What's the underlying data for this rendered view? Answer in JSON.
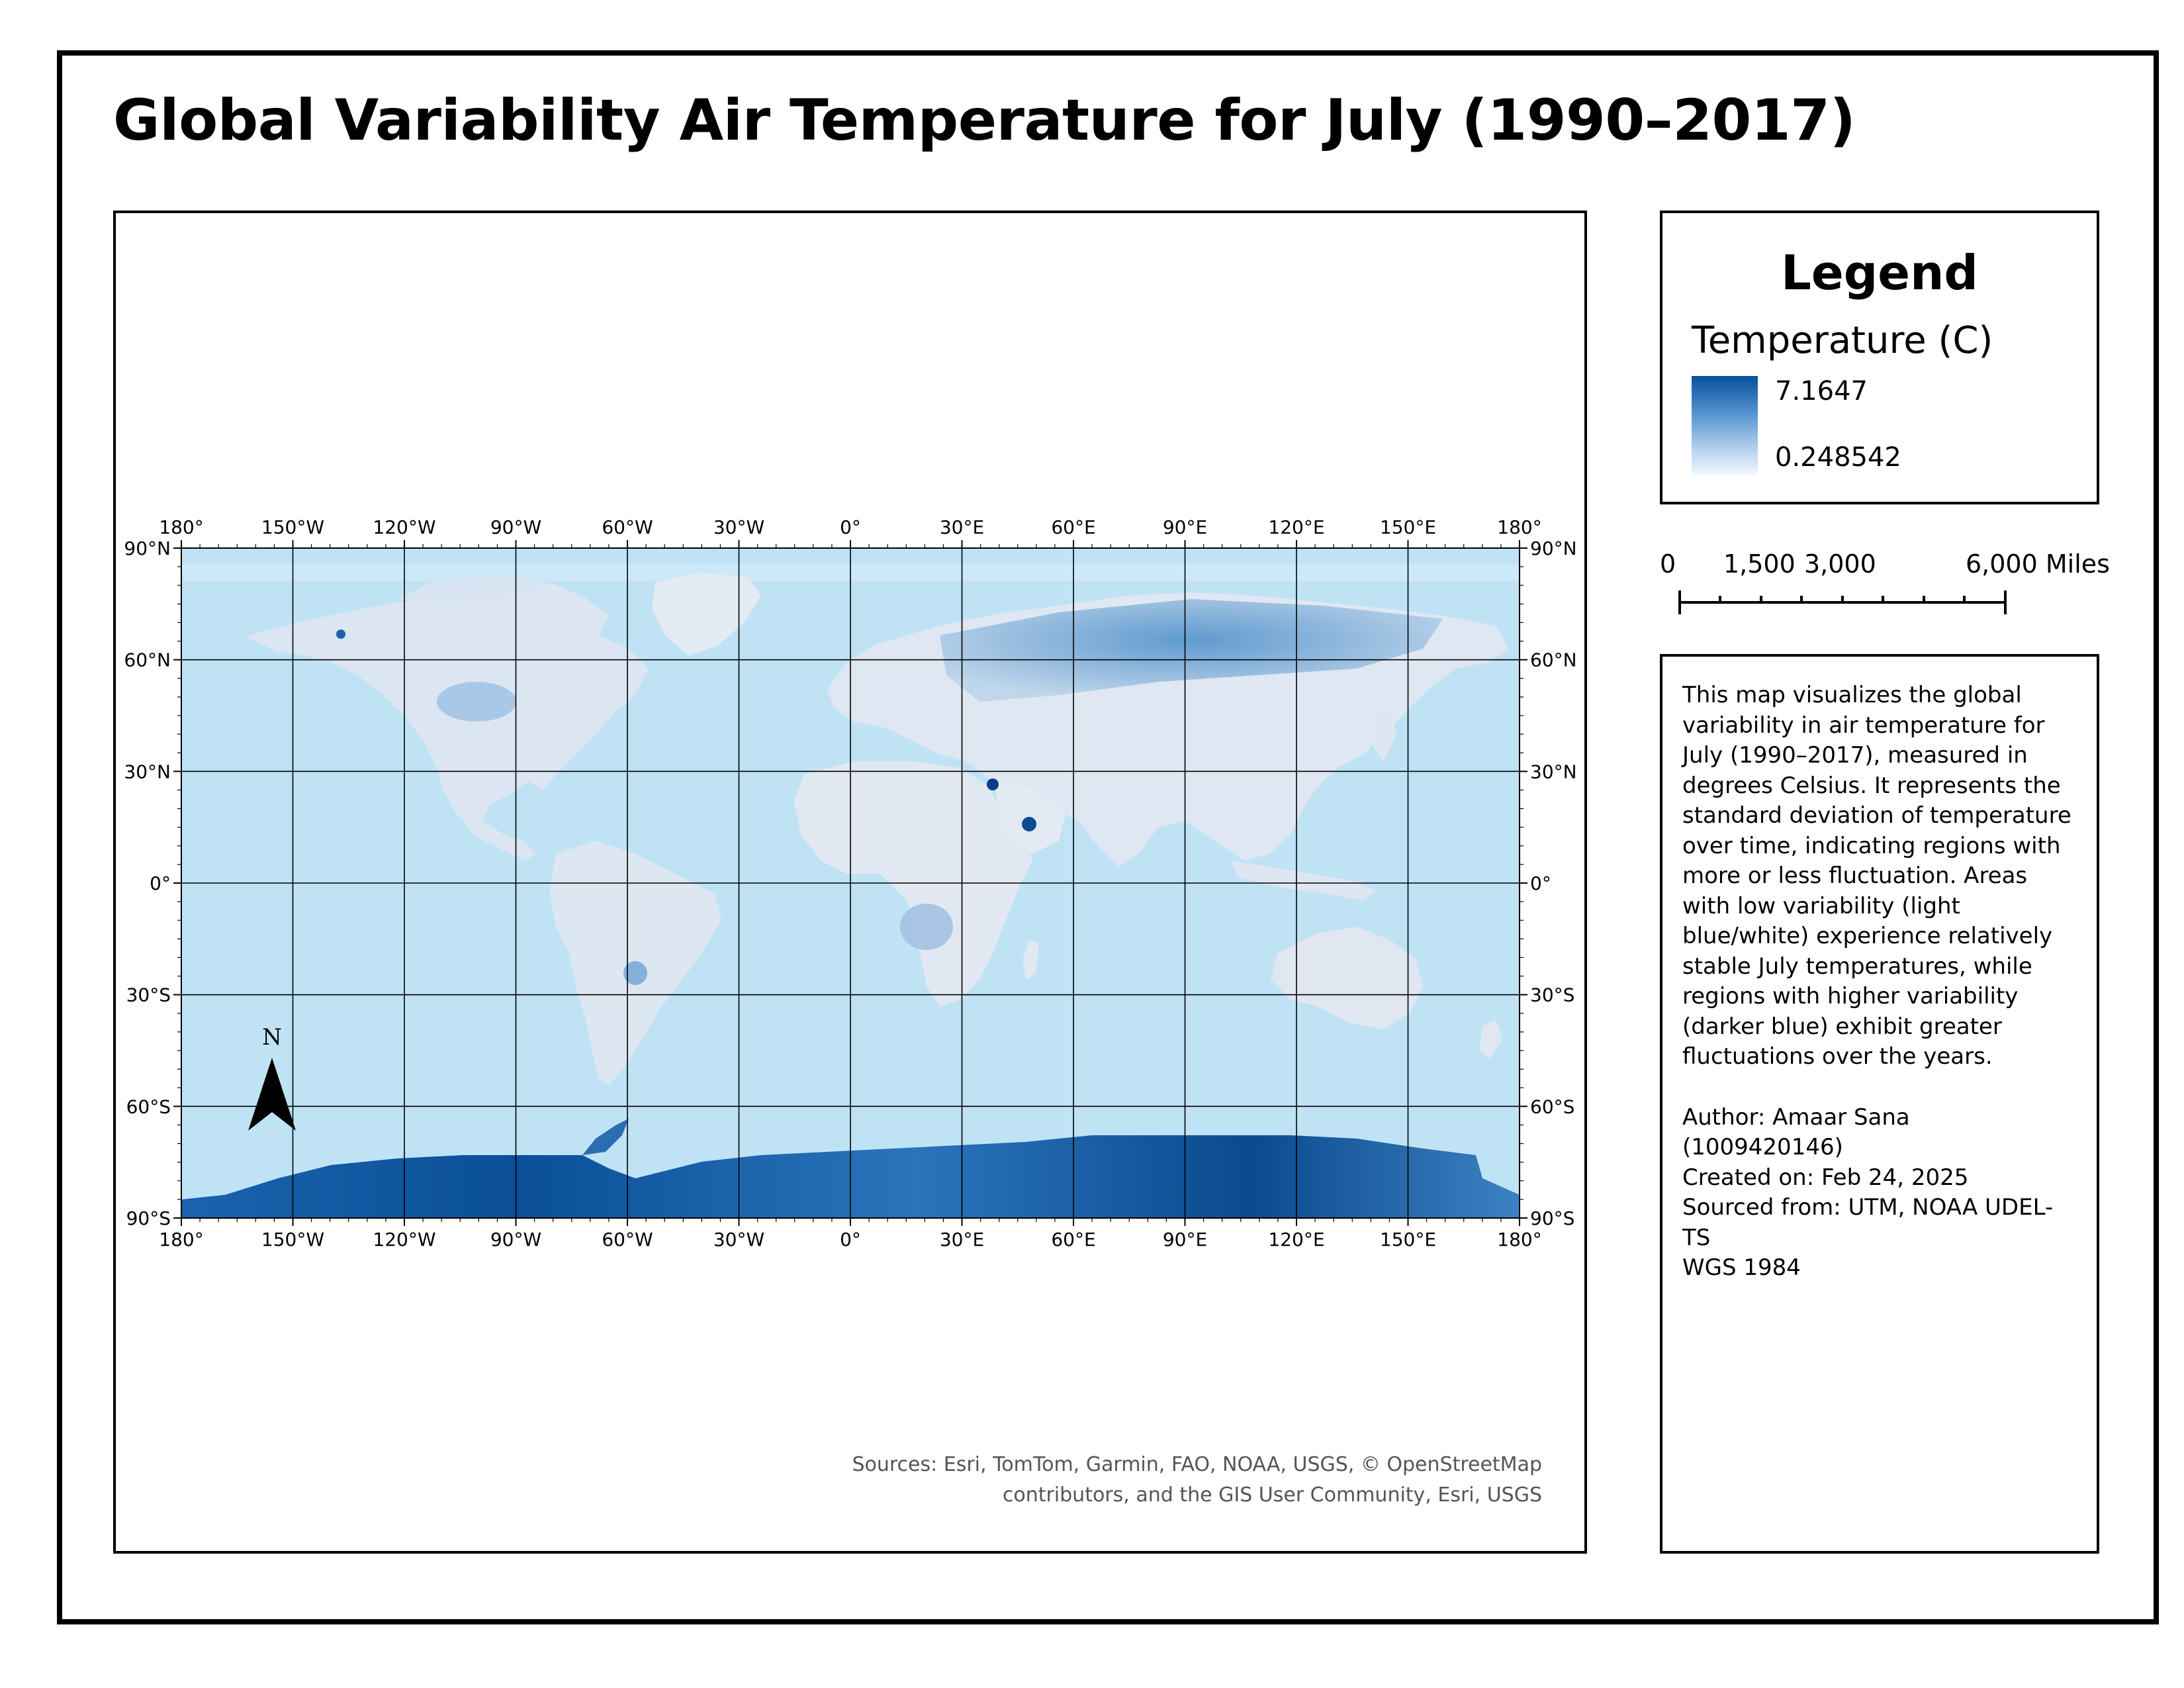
{
  "title": "Global Variability Air Temperature for July (1990–2017)",
  "map": {
    "lon_labels": [
      "180°",
      "150°W",
      "120°W",
      "90°W",
      "60°W",
      "30°W",
      "0°",
      "30°E",
      "60°E",
      "90°E",
      "120°E",
      "150°E",
      "180°"
    ],
    "lat_labels": [
      "90°N",
      "60°N",
      "30°N",
      "0°",
      "30°S",
      "60°S",
      "90°S"
    ],
    "north_arrow": {
      "label": "N",
      "icon": "north-arrow-icon"
    },
    "sources": [
      "Sources: Esri, TomTom, Garmin, FAO, NOAA, USGS, © OpenStreetMap",
      "contributors, and the GIS User Community, Esri, USGS"
    ],
    "colors": {
      "ocean": "#bfe3f5",
      "land_low": "#e6ecf4",
      "land_high": "#08519c"
    }
  },
  "legend": {
    "title": "Legend",
    "subtitle": "Temperature (C)",
    "max_label": "7.1647",
    "min_label": "0.248542"
  },
  "scalebar": {
    "labels": [
      "0",
      "1,500",
      "3,000",
      "6,000 Miles"
    ]
  },
  "description": {
    "text": "This map visualizes the global variability in air temperature for July (1990–2017), measured in degrees Celsius. It represents the standard deviation of temperature over time, indicating regions with more or less fluctuation. Areas with low variability (light blue/white) experience relatively stable July temperatures, while regions with higher variability (darker blue) exhibit greater fluctuations over the years.",
    "author": "Author: Amaar Sana (1009420146)",
    "created": "Created on: Feb 24, 2025",
    "sourced": "Sourced from: UTM, NOAA UDEL-TS",
    "datum": "WGS 1984"
  }
}
